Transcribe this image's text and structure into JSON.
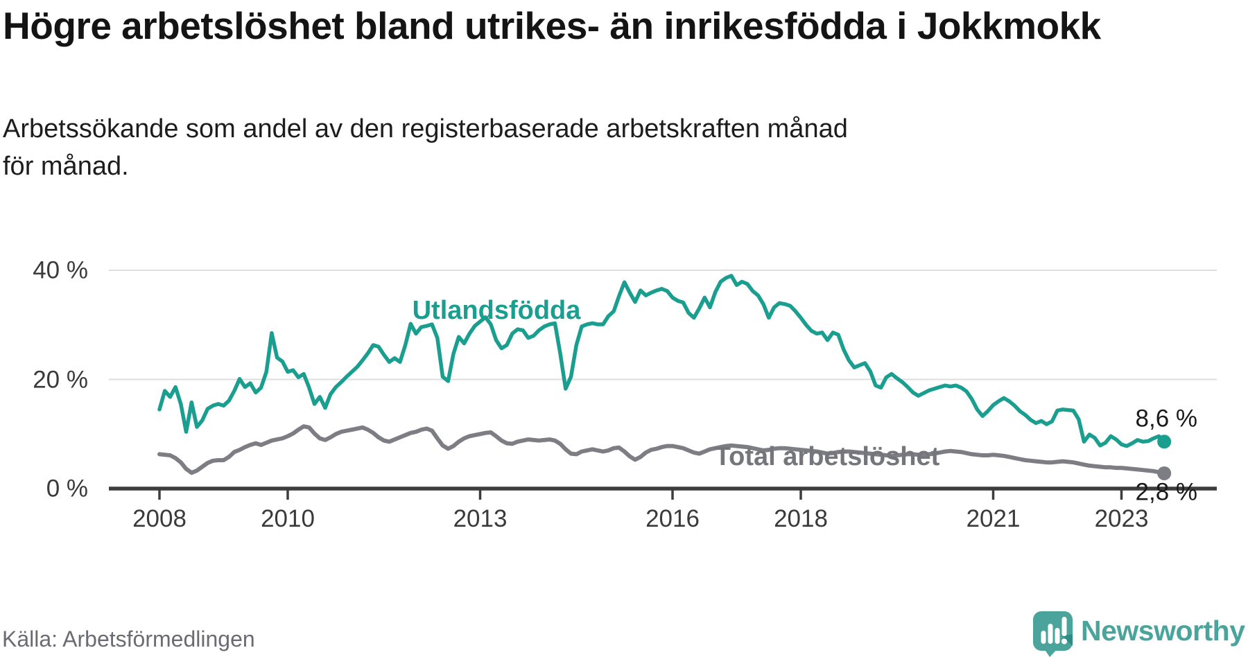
{
  "header": {
    "title": "Högre arbetslöshet bland utrikes- än inrikesfödda i Jokkmokk",
    "subtitle": "Arbetssökande som andel av den registerbaserade arbetskraften månad för månad."
  },
  "footer": {
    "source": "Källa: Arbetsförmedlingen",
    "brand": "Newsworthy"
  },
  "colors": {
    "series_1": "#1A9E8F",
    "series_2": "#7D7D84",
    "series_2_label": "#75757C",
    "grid": "#DEDEDE",
    "axis": "#3D3D3D",
    "text_dark": "#1A1A1A",
    "text_gray": "#6B6B74",
    "brand_teal": "#4BA49C"
  },
  "chart_data": {
    "type": "line",
    "title": "Högre arbetslöshet bland utrikes- än inrikesfödda i Jokkmokk",
    "subtitle": "Arbetssökande som andel av den registerbaserade arbetskraften månad för månad.",
    "unit": "%",
    "frequency": "monthly",
    "x_start": "2008-01",
    "x_end": "2023-09",
    "grid": "horizontal",
    "legend_position": "inline-labels",
    "ylim": [
      0,
      42
    ],
    "y_ticks": [
      {
        "value": 0,
        "label": "0 %"
      },
      {
        "value": 20,
        "label": "20 %"
      },
      {
        "value": 40,
        "label": "40 %"
      }
    ],
    "x_ticks": [
      {
        "year": 2008,
        "label": "2008"
      },
      {
        "year": 2010,
        "label": "2010"
      },
      {
        "year": 2013,
        "label": "2013"
      },
      {
        "year": 2016,
        "label": "2016"
      },
      {
        "year": 2018,
        "label": "2018"
      },
      {
        "year": 2021,
        "label": "2021"
      },
      {
        "year": 2023,
        "label": "2023"
      }
    ],
    "series": [
      {
        "name": "Utlandsfödda",
        "end_label": "8,6 %",
        "end_value": 8.6,
        "color": "#1A9E8F",
        "values": [
          14.5,
          17.9,
          16.8,
          18.6,
          15.5,
          10.4,
          15.8,
          11.3,
          12.5,
          14.6,
          15.2,
          15.5,
          15.2,
          16.1,
          17.9,
          20.1,
          18.6,
          19.3,
          17.6,
          18.5,
          21.4,
          28.5,
          24.0,
          23.3,
          21.4,
          21.7,
          20.4,
          21.0,
          18.5,
          15.5,
          16.8,
          14.8,
          17.3,
          18.6,
          19.5,
          20.5,
          21.4,
          22.3,
          23.5,
          24.8,
          26.3,
          26.0,
          24.5,
          23.2,
          23.9,
          23.2,
          26.3,
          30.2,
          28.4,
          29.6,
          29.8,
          30.1,
          27.6,
          20.5,
          19.7,
          24.7,
          27.8,
          26.6,
          28.4,
          29.8,
          30.6,
          31.4,
          30.1,
          27.2,
          25.7,
          26.3,
          28.4,
          29.2,
          29.0,
          27.6,
          28.0,
          29.0,
          29.7,
          30.1,
          30.3,
          24.7,
          18.3,
          20.5,
          26.3,
          29.7,
          30.1,
          30.3,
          30.1,
          30.1,
          31.6,
          32.5,
          35.3,
          37.8,
          35.9,
          34.2,
          36.3,
          35.4,
          35.9,
          36.3,
          36.6,
          36.2,
          35.0,
          34.4,
          34.1,
          32.2,
          31.3,
          33.0,
          35.0,
          33.2,
          36.0,
          37.9,
          38.6,
          39.0,
          37.3,
          37.9,
          37.5,
          36.2,
          35.4,
          33.8,
          31.3,
          33.2,
          34.0,
          33.8,
          33.5,
          32.5,
          31.3,
          30.0,
          28.9,
          28.4,
          28.6,
          27.2,
          28.6,
          28.2,
          25.5,
          23.5,
          22.2,
          22.6,
          23.0,
          21.5,
          18.9,
          18.5,
          20.4,
          21.0,
          20.2,
          19.5,
          18.6,
          17.6,
          17.0,
          17.5,
          18.0,
          18.3,
          18.6,
          18.9,
          18.7,
          18.9,
          18.5,
          17.8,
          16.4,
          14.5,
          13.3,
          14.2,
          15.3,
          16.0,
          16.6,
          16.0,
          15.2,
          14.2,
          13.5,
          12.6,
          12.0,
          12.4,
          11.8,
          12.3,
          14.3,
          14.5,
          14.4,
          14.3,
          12.7,
          8.6,
          9.9,
          9.3,
          7.9,
          8.4,
          9.6,
          9.0,
          8.1,
          7.8,
          8.3,
          8.9,
          8.6,
          8.7,
          9.2,
          9.6,
          8.6
        ]
      },
      {
        "name": "Total arbetslöshet",
        "end_label": "2,8 %",
        "end_value": 2.8,
        "color": "#7D7D84",
        "values": [
          6.3,
          6.2,
          6.1,
          5.6,
          4.8,
          3.6,
          2.9,
          3.3,
          4.0,
          4.7,
          5.1,
          5.2,
          5.2,
          5.8,
          6.7,
          7.1,
          7.6,
          8.0,
          8.3,
          8.0,
          8.4,
          8.8,
          9.0,
          9.2,
          9.6,
          10.1,
          10.8,
          11.4,
          11.2,
          10.1,
          9.2,
          8.9,
          9.4,
          10.0,
          10.4,
          10.6,
          10.8,
          11.0,
          11.2,
          10.8,
          10.2,
          9.4,
          8.8,
          8.6,
          9.0,
          9.4,
          9.8,
          10.2,
          10.4,
          10.8,
          11.0,
          10.6,
          9.2,
          7.9,
          7.3,
          7.8,
          8.6,
          9.2,
          9.6,
          9.8,
          10.0,
          10.2,
          10.3,
          9.6,
          8.8,
          8.3,
          8.2,
          8.6,
          8.8,
          9.0,
          8.9,
          8.8,
          8.9,
          9.0,
          8.8,
          8.2,
          7.2,
          6.4,
          6.3,
          6.8,
          7.0,
          7.2,
          7.0,
          6.8,
          7.0,
          7.4,
          7.5,
          6.8,
          5.9,
          5.3,
          5.8,
          6.6,
          7.1,
          7.3,
          7.6,
          7.8,
          7.8,
          7.6,
          7.4,
          7.0,
          6.6,
          6.4,
          6.8,
          7.2,
          7.4,
          7.6,
          7.8,
          7.9,
          7.8,
          7.7,
          7.6,
          7.4,
          7.2,
          7.0,
          7.1,
          7.3,
          7.4,
          7.4,
          7.3,
          7.2,
          7.1,
          7.0,
          6.9,
          6.8,
          6.6,
          6.4,
          6.5,
          6.7,
          6.8,
          6.8,
          6.7,
          6.6,
          6.5,
          6.4,
          6.3,
          6.2,
          6.1,
          6.0,
          6.1,
          6.2,
          6.3,
          6.3,
          6.2,
          6.2,
          6.3,
          6.4,
          6.6,
          6.8,
          6.9,
          6.8,
          6.7,
          6.5,
          6.3,
          6.2,
          6.1,
          6.1,
          6.2,
          6.1,
          6.0,
          5.8,
          5.6,
          5.4,
          5.2,
          5.1,
          5.0,
          4.9,
          4.8,
          4.8,
          4.9,
          5.0,
          4.9,
          4.8,
          4.6,
          4.4,
          4.2,
          4.1,
          4.0,
          3.9,
          3.9,
          3.8,
          3.8,
          3.7,
          3.6,
          3.5,
          3.4,
          3.3,
          3.2,
          3.0,
          2.8
        ]
      }
    ]
  }
}
